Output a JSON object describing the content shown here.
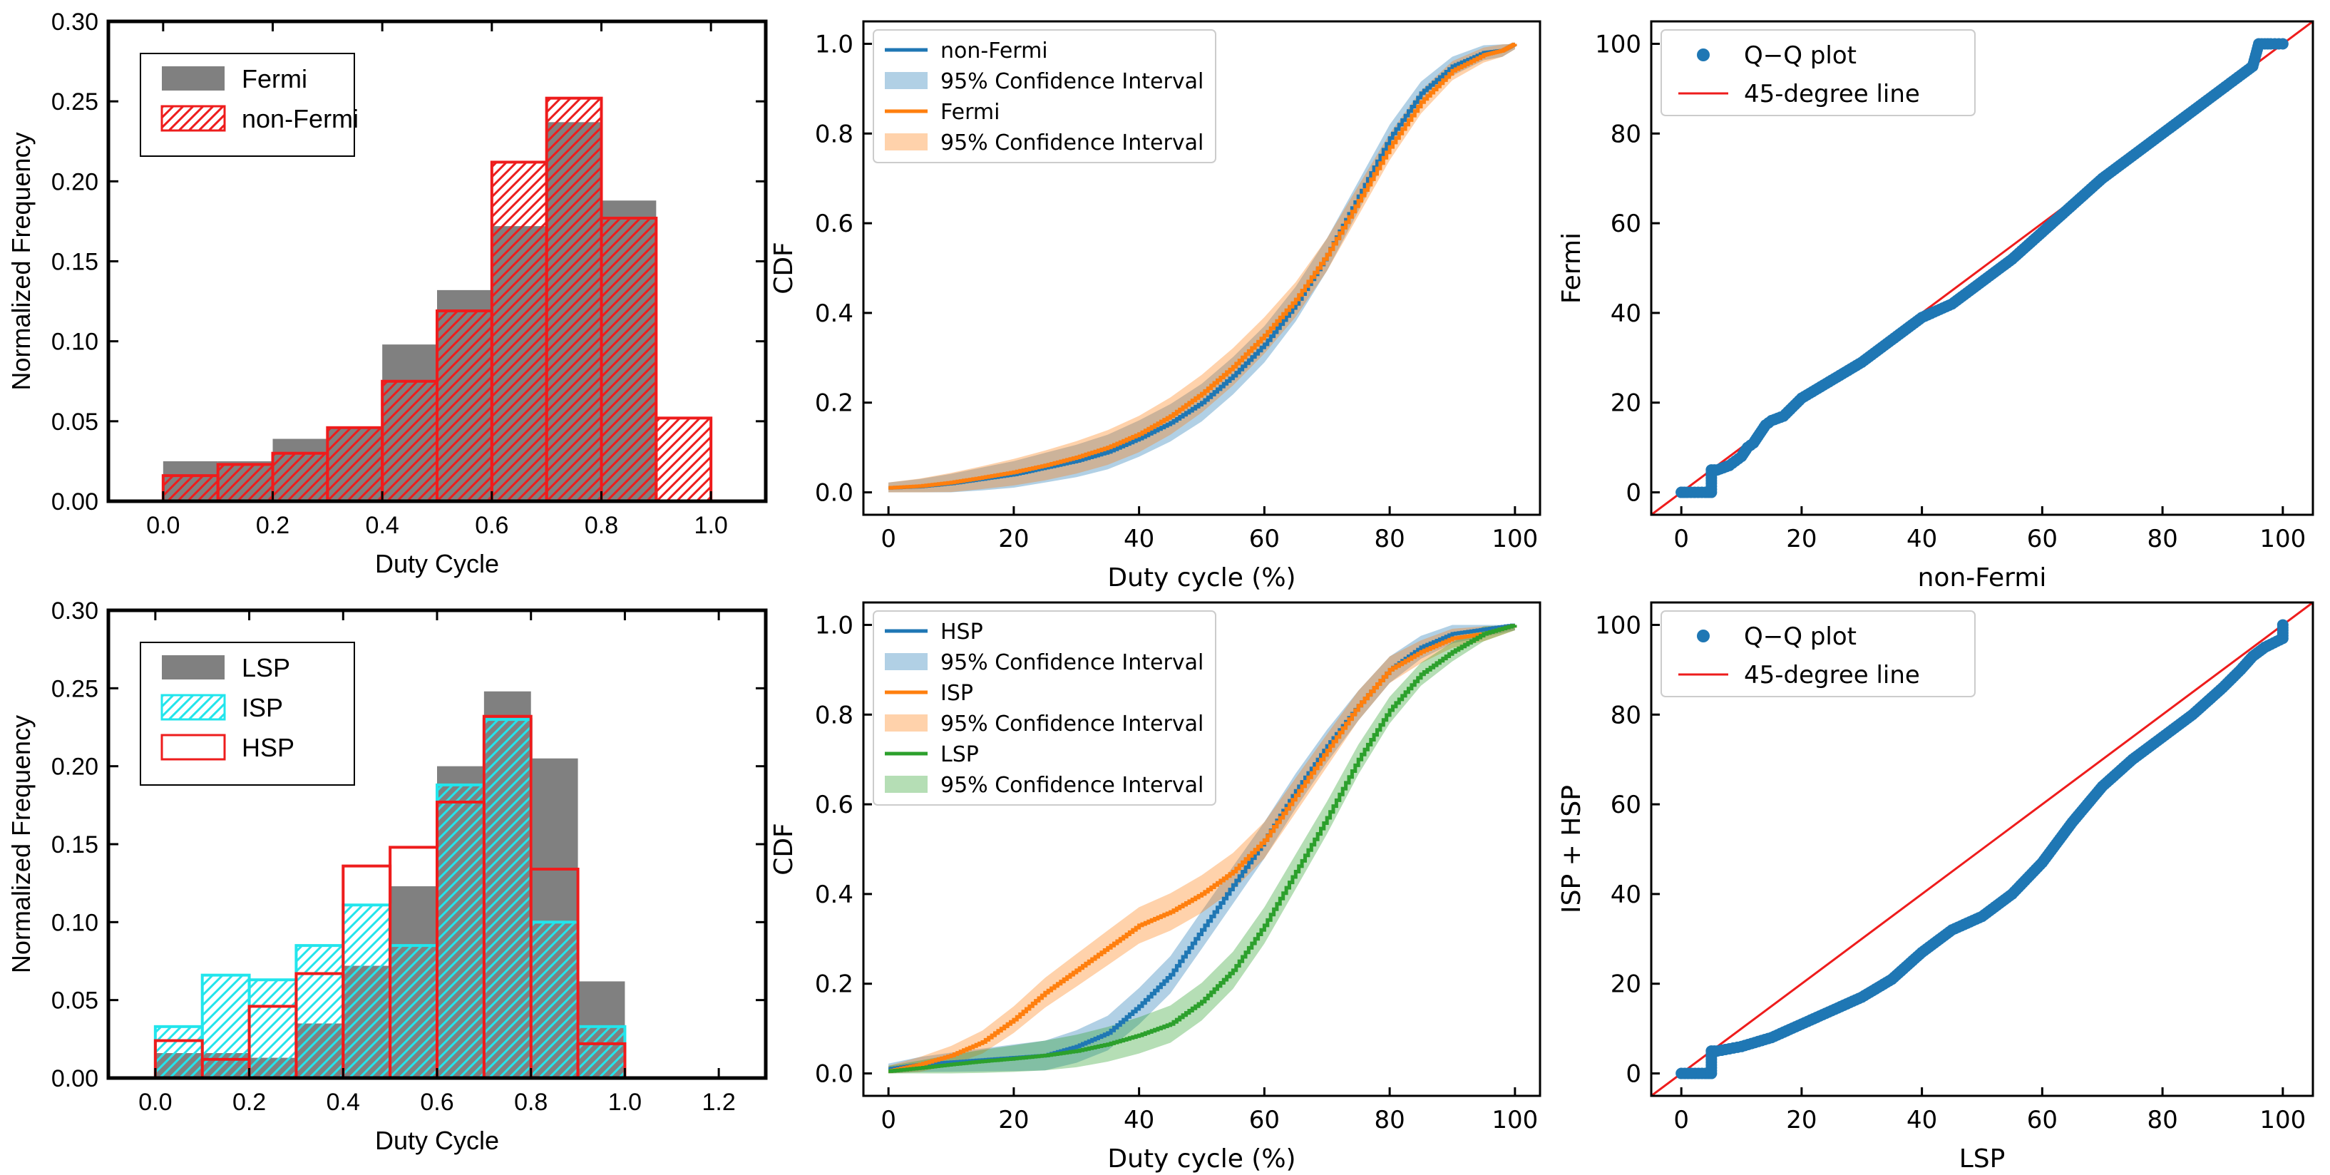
{
  "chart_data": [
    {
      "id": "p1",
      "type": "bar",
      "xlabel": "Duty Cycle",
      "ylabel": "Normalized Frequency",
      "xlim": [
        -0.1,
        1.1
      ],
      "ylim": [
        0,
        0.3
      ],
      "xticks": [
        "0.0",
        "0.2",
        "0.4",
        "0.6",
        "0.8",
        "1.0"
      ],
      "yticks": [
        "0.00",
        "0.05",
        "0.10",
        "0.15",
        "0.20",
        "0.25",
        "0.30"
      ],
      "bin_edges": [
        0.0,
        0.1,
        0.2,
        0.3,
        0.4,
        0.5,
        0.6,
        0.7,
        0.8,
        0.9,
        1.0
      ],
      "legend_position": "upper-left",
      "series": [
        {
          "name": "Fermi",
          "style": "gray-fill",
          "color": "#808080",
          "values": [
            0.025,
            0.025,
            0.039,
            0.046,
            0.098,
            0.132,
            0.172,
            0.237,
            0.188,
            0.0
          ]
        },
        {
          "name": "non-Fermi",
          "style": "red-hatch",
          "color": "#ee1c1c",
          "values": [
            0.016,
            0.023,
            0.03,
            0.046,
            0.075,
            0.119,
            0.212,
            0.252,
            0.177,
            0.052
          ]
        }
      ]
    },
    {
      "id": "p2",
      "type": "line",
      "xlabel": "Duty cycle (%)",
      "ylabel": "CDF",
      "xlim": [
        -4,
        104
      ],
      "ylim": [
        -0.05,
        1.05
      ],
      "xticks": [
        "0",
        "20",
        "40",
        "60",
        "80",
        "100"
      ],
      "yticks": [
        "0.0",
        "0.2",
        "0.4",
        "0.6",
        "0.8",
        "1.0"
      ],
      "legend_position": "upper-left",
      "series": [
        {
          "name": "non-Fermi",
          "band_label": "95% Confidence Interval",
          "color": "#1f77b4",
          "x": [
            0,
            5,
            10,
            15,
            20,
            25,
            30,
            35,
            40,
            45,
            50,
            55,
            60,
            65,
            70,
            75,
            80,
            85,
            90,
            95,
            98,
            100
          ],
          "y": [
            0.01,
            0.013,
            0.02,
            0.03,
            0.04,
            0.055,
            0.07,
            0.09,
            0.12,
            0.155,
            0.2,
            0.26,
            0.33,
            0.42,
            0.53,
            0.66,
            0.79,
            0.89,
            0.95,
            0.98,
            0.985,
            1.0
          ]
        },
        {
          "name": "Fermi",
          "band_label": "95% Confidence Interval",
          "color": "#ff7f0e",
          "x": [
            0,
            5,
            10,
            15,
            20,
            25,
            30,
            35,
            40,
            45,
            50,
            55,
            60,
            65,
            70,
            75,
            80,
            85,
            90,
            95,
            98,
            100
          ],
          "y": [
            0.01,
            0.014,
            0.022,
            0.033,
            0.045,
            0.06,
            0.078,
            0.1,
            0.13,
            0.17,
            0.22,
            0.28,
            0.35,
            0.43,
            0.53,
            0.65,
            0.77,
            0.87,
            0.94,
            0.975,
            0.985,
            1.0
          ]
        }
      ]
    },
    {
      "id": "p3",
      "type": "scatter",
      "xlabel": "non-Fermi",
      "ylabel": "Fermi",
      "xlim": [
        -5,
        105
      ],
      "ylim": [
        -5,
        105
      ],
      "xticks": [
        "0",
        "20",
        "40",
        "60",
        "80",
        "100"
      ],
      "yticks": [
        "0",
        "20",
        "40",
        "60",
        "80",
        "100"
      ],
      "legend_position": "upper-left",
      "series": [
        {
          "name": "Q−Q plot",
          "color": "#1f77b4",
          "x": [
            0,
            0,
            1,
            4,
            5,
            5,
            5,
            6,
            7,
            8,
            9,
            10,
            11,
            12,
            13,
            14,
            15,
            17,
            20,
            25,
            30,
            35,
            40,
            45,
            50,
            55,
            60,
            65,
            70,
            75,
            80,
            85,
            90,
            93,
            95,
            96,
            97,
            98,
            100
          ],
          "y": [
            0,
            0,
            0,
            0,
            0,
            2,
            5,
            5,
            5.5,
            6,
            7,
            8,
            10,
            11,
            13,
            15,
            16,
            17,
            21,
            25,
            29,
            34,
            39,
            42,
            47,
            52,
            58,
            64,
            70,
            75,
            80,
            85,
            90,
            93,
            95,
            100,
            100,
            100,
            100
          ]
        },
        {
          "name": "45-degree line",
          "color": "#ee1c1c",
          "kind": "line",
          "x": [
            -5,
            105
          ],
          "y": [
            -5,
            105
          ]
        }
      ]
    },
    {
      "id": "p4",
      "type": "bar",
      "xlabel": "Duty Cycle",
      "ylabel": "Normalized Frequency",
      "xlim": [
        -0.1,
        1.3
      ],
      "ylim": [
        0,
        0.3
      ],
      "xticks": [
        "0.0",
        "0.2",
        "0.4",
        "0.6",
        "0.8",
        "1.0",
        "1.2"
      ],
      "yticks": [
        "0.00",
        "0.05",
        "0.10",
        "0.15",
        "0.20",
        "0.25",
        "0.30"
      ],
      "bin_edges": [
        0.0,
        0.1,
        0.2,
        0.3,
        0.4,
        0.5,
        0.6,
        0.7,
        0.8,
        0.9,
        1.0
      ],
      "legend_position": "upper-left",
      "series": [
        {
          "name": "LSP",
          "style": "gray-fill",
          "color": "#808080",
          "values": [
            0.016,
            0.016,
            0.013,
            0.035,
            0.072,
            0.123,
            0.2,
            0.248,
            0.205,
            0.062
          ]
        },
        {
          "name": "ISP",
          "style": "cyan-hatch",
          "color": "#22e5ec",
          "values": [
            0.033,
            0.066,
            0.063,
            0.085,
            0.111,
            0.085,
            0.188,
            0.23,
            0.1,
            0.033
          ]
        },
        {
          "name": "HSP",
          "style": "red-outline",
          "color": "#ee1c1c",
          "values": [
            0.024,
            0.012,
            0.046,
            0.067,
            0.136,
            0.148,
            0.177,
            0.232,
            0.134,
            0.022
          ]
        }
      ]
    },
    {
      "id": "p5",
      "type": "line",
      "xlabel": "Duty cycle (%)",
      "ylabel": "CDF",
      "xlim": [
        -4,
        104
      ],
      "ylim": [
        -0.05,
        1.05
      ],
      "xticks": [
        "0",
        "20",
        "40",
        "60",
        "80",
        "100"
      ],
      "yticks": [
        "0.0",
        "0.2",
        "0.4",
        "0.6",
        "0.8",
        "1.0"
      ],
      "legend_position": "upper-left",
      "series": [
        {
          "name": "HSP",
          "band_label": "95% Confidence Interval",
          "color": "#1f77b4",
          "x": [
            0,
            5,
            10,
            15,
            20,
            25,
            30,
            35,
            40,
            45,
            50,
            55,
            60,
            65,
            70,
            75,
            80,
            85,
            90,
            95,
            100
          ],
          "y": [
            0.01,
            0.02,
            0.025,
            0.03,
            0.035,
            0.04,
            0.06,
            0.09,
            0.15,
            0.22,
            0.32,
            0.42,
            0.52,
            0.63,
            0.73,
            0.82,
            0.9,
            0.95,
            0.98,
            0.99,
            1.0
          ]
        },
        {
          "name": "ISP",
          "band_label": "95% Confidence Interval",
          "color": "#ff7f0e",
          "x": [
            0,
            5,
            10,
            15,
            20,
            25,
            30,
            35,
            40,
            45,
            50,
            55,
            60,
            65,
            70,
            75,
            80,
            85,
            90,
            95,
            100
          ],
          "y": [
            0.005,
            0.02,
            0.04,
            0.07,
            0.12,
            0.18,
            0.23,
            0.28,
            0.33,
            0.36,
            0.4,
            0.45,
            0.52,
            0.62,
            0.72,
            0.82,
            0.9,
            0.94,
            0.97,
            0.98,
            1.0
          ]
        },
        {
          "name": "LSP",
          "band_label": "95% Confidence Interval",
          "color": "#2ca02c",
          "x": [
            0,
            5,
            10,
            15,
            20,
            25,
            30,
            35,
            40,
            45,
            50,
            55,
            60,
            65,
            70,
            75,
            80,
            85,
            90,
            95,
            100
          ],
          "y": [
            0.005,
            0.012,
            0.02,
            0.027,
            0.033,
            0.04,
            0.05,
            0.065,
            0.085,
            0.11,
            0.16,
            0.23,
            0.33,
            0.45,
            0.57,
            0.7,
            0.81,
            0.89,
            0.94,
            0.98,
            1.0
          ]
        }
      ]
    },
    {
      "id": "p6",
      "type": "scatter",
      "xlabel": "LSP",
      "ylabel": "ISP + HSP",
      "xlim": [
        -5,
        105
      ],
      "ylim": [
        -5,
        105
      ],
      "xticks": [
        "0",
        "20",
        "40",
        "60",
        "80",
        "100"
      ],
      "yticks": [
        "0",
        "20",
        "40",
        "60",
        "80",
        "100"
      ],
      "legend_position": "upper-left",
      "series": [
        {
          "name": "Q−Q plot",
          "color": "#1f77b4",
          "x": [
            0,
            4,
            5,
            5,
            6,
            8,
            10,
            15,
            20,
            25,
            30,
            35,
            40,
            45,
            50,
            55,
            60,
            65,
            70,
            75,
            80,
            85,
            90,
            93,
            95,
            97,
            100,
            100
          ],
          "y": [
            0,
            0,
            0,
            5,
            5,
            5.5,
            6,
            8,
            11,
            14,
            17,
            21,
            27,
            32,
            35,
            40,
            47,
            56,
            64,
            70,
            75,
            80,
            86,
            90,
            93,
            95,
            97,
            100
          ]
        },
        {
          "name": "45-degree line",
          "color": "#ee1c1c",
          "kind": "line",
          "x": [
            -5,
            105
          ],
          "y": [
            -5,
            105
          ]
        }
      ]
    }
  ]
}
